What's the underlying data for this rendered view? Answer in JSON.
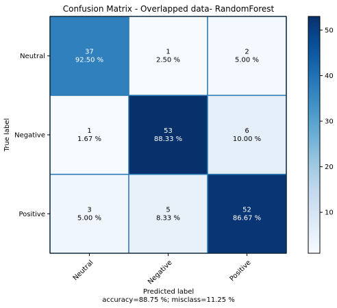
{
  "chart_data": {
    "type": "heatmap",
    "title": "Confusion Matrix - Overlapped data- RandomForest",
    "xlabel": "Predicted label",
    "xlabel_sub": "accuracy=88.75 %; misclass=11.25 %",
    "ylabel": "True label",
    "x_categories": [
      "Neutral",
      "Negative",
      "Positive"
    ],
    "y_categories": [
      "Neutral",
      "Negative",
      "Positive"
    ],
    "matrix": [
      [
        37,
        1,
        2
      ],
      [
        1,
        53,
        6
      ],
      [
        3,
        5,
        52
      ]
    ],
    "percent_labels": [
      [
        "92.50 %",
        "2.50 %",
        "5.00 %"
      ],
      [
        "1.67 %",
        "88.33 %",
        "10.00 %"
      ],
      [
        "5.00 %",
        "8.33 %",
        "86.67 %"
      ]
    ],
    "colormap": "Blues",
    "colorbar": {
      "min": 1,
      "max": 53,
      "ticks": [
        10,
        20,
        30,
        40,
        50
      ]
    },
    "grid_color": "#2c7bb6"
  }
}
